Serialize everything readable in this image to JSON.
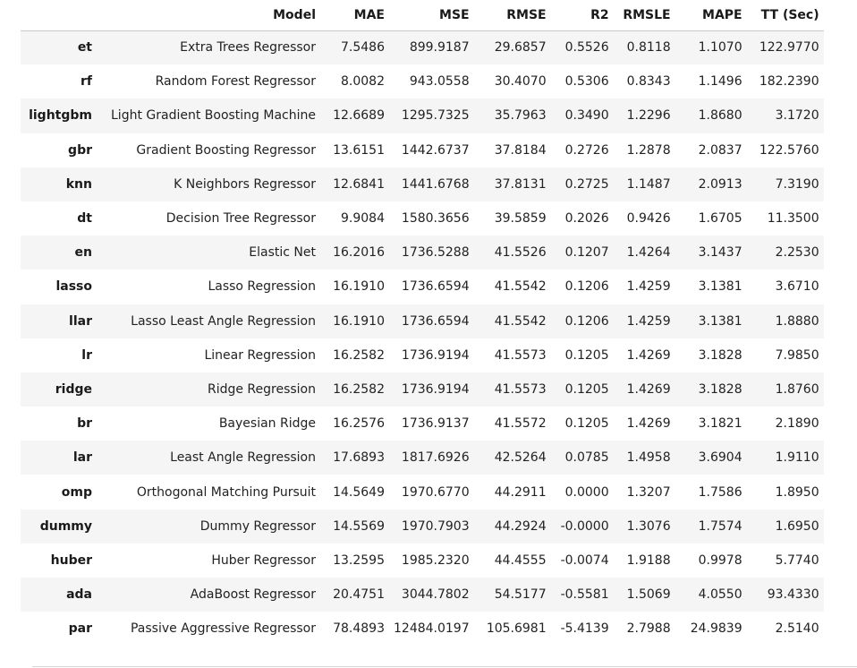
{
  "table": {
    "columns": [
      "",
      "Model",
      "MAE",
      "MSE",
      "RMSE",
      "R2",
      "RMSLE",
      "MAPE",
      "TT (Sec)"
    ],
    "rows": [
      [
        "et",
        "Extra Trees Regressor",
        "7.5486",
        "899.9187",
        "29.6857",
        "0.5526",
        "0.8118",
        "1.1070",
        "122.9770"
      ],
      [
        "rf",
        "Random Forest Regressor",
        "8.0082",
        "943.0558",
        "30.4070",
        "0.5306",
        "0.8343",
        "1.1496",
        "182.2390"
      ],
      [
        "lightgbm",
        "Light Gradient Boosting Machine",
        "12.6689",
        "1295.7325",
        "35.7963",
        "0.3490",
        "1.2296",
        "1.8680",
        "3.1720"
      ],
      [
        "gbr",
        "Gradient Boosting Regressor",
        "13.6151",
        "1442.6737",
        "37.8184",
        "0.2726",
        "1.2878",
        "2.0837",
        "122.5760"
      ],
      [
        "knn",
        "K Neighbors Regressor",
        "12.6841",
        "1441.6768",
        "37.8131",
        "0.2725",
        "1.1487",
        "2.0913",
        "7.3190"
      ],
      [
        "dt",
        "Decision Tree Regressor",
        "9.9084",
        "1580.3656",
        "39.5859",
        "0.2026",
        "0.9426",
        "1.6705",
        "11.3500"
      ],
      [
        "en",
        "Elastic Net",
        "16.2016",
        "1736.5288",
        "41.5526",
        "0.1207",
        "1.4264",
        "3.1437",
        "2.2530"
      ],
      [
        "lasso",
        "Lasso Regression",
        "16.1910",
        "1736.6594",
        "41.5542",
        "0.1206",
        "1.4259",
        "3.1381",
        "3.6710"
      ],
      [
        "llar",
        "Lasso Least Angle Regression",
        "16.1910",
        "1736.6594",
        "41.5542",
        "0.1206",
        "1.4259",
        "3.1381",
        "1.8880"
      ],
      [
        "lr",
        "Linear Regression",
        "16.2582",
        "1736.9194",
        "41.5573",
        "0.1205",
        "1.4269",
        "3.1828",
        "7.9850"
      ],
      [
        "ridge",
        "Ridge Regression",
        "16.2582",
        "1736.9194",
        "41.5573",
        "0.1205",
        "1.4269",
        "3.1828",
        "1.8760"
      ],
      [
        "br",
        "Bayesian Ridge",
        "16.2576",
        "1736.9137",
        "41.5572",
        "0.1205",
        "1.4269",
        "3.1821",
        "2.1890"
      ],
      [
        "lar",
        "Least Angle Regression",
        "17.6893",
        "1817.6926",
        "42.5264",
        "0.0785",
        "1.4958",
        "3.6904",
        "1.9110"
      ],
      [
        "omp",
        "Orthogonal Matching Pursuit",
        "14.5649",
        "1970.6770",
        "44.2911",
        "0.0000",
        "1.3207",
        "1.7586",
        "1.8950"
      ],
      [
        "dummy",
        "Dummy Regressor",
        "14.5569",
        "1970.7903",
        "44.2924",
        "-0.0000",
        "1.3076",
        "1.7574",
        "1.6950"
      ],
      [
        "huber",
        "Huber Regressor",
        "13.2595",
        "1985.2320",
        "44.4555",
        "-0.0074",
        "1.9188",
        "0.9978",
        "5.7740"
      ],
      [
        "ada",
        "AdaBoost Regressor",
        "20.4751",
        "3044.7802",
        "54.5177",
        "-0.5581",
        "1.5069",
        "4.0550",
        "93.4330"
      ],
      [
        "par",
        "Passive Aggressive Regressor",
        "78.4893",
        "12484.0197",
        "105.6981",
        "-5.4139",
        "2.7988",
        "24.9839",
        "2.5140"
      ]
    ]
  }
}
